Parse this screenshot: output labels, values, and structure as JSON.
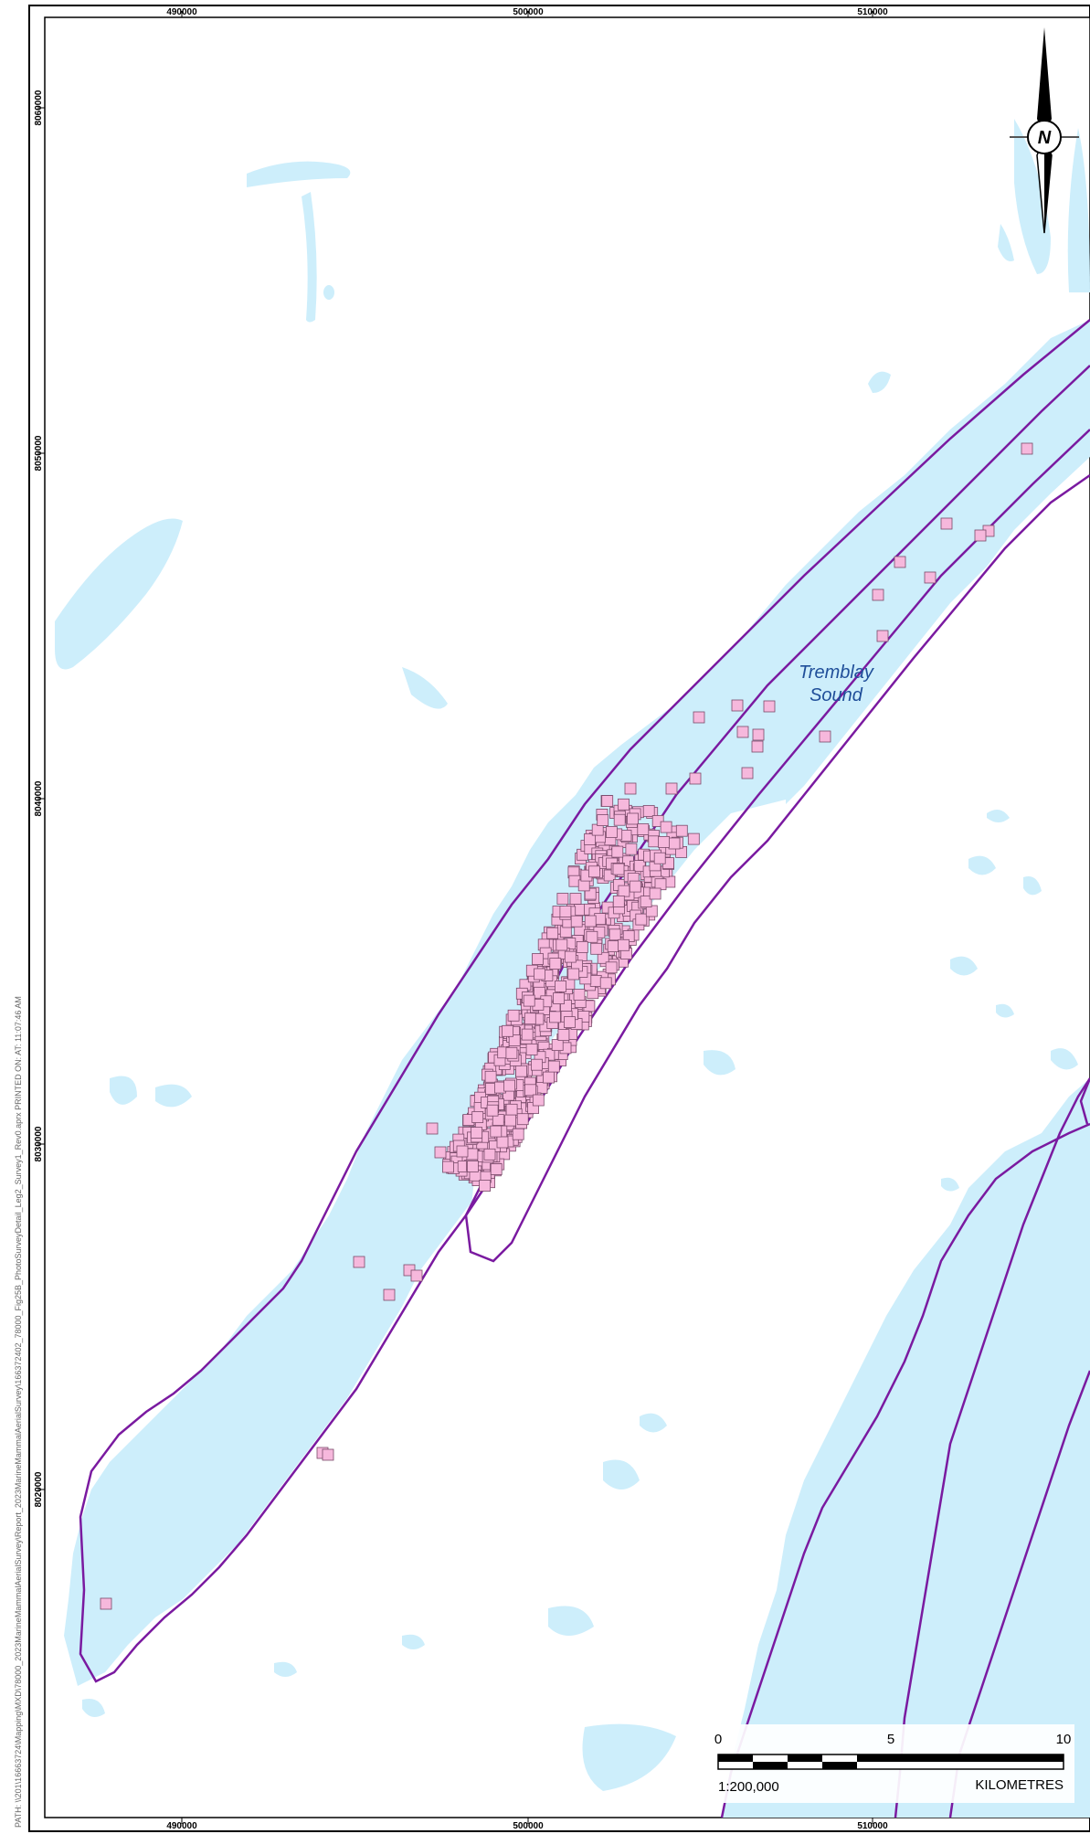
{
  "map": {
    "grid_x_labels": [
      "490000",
      "500000",
      "510000"
    ],
    "grid_y_labels": [
      "8060000",
      "8050000",
      "8040000",
      "8030000",
      "8020000"
    ],
    "place_name": [
      "Tremblay",
      "Sound"
    ],
    "north_arrow_letter": "N",
    "scale_bar": {
      "labels": [
        "0",
        "5",
        "10"
      ],
      "ratio": "1:200,000",
      "units": "KILOMETRES"
    },
    "path_note": "PATH: \\\\201\\16663724\\Mapping\\MXD\\78000_2023MarineMammalAerialSurvey\\Report_2023MarineMammalAerialSurvey\\166372402_78000_Fig25B_PhotoSurveyDetail_Leg2_Survey1_Rev0.aprx PRINTED ON: AT: 11:07:46 AM",
    "colors": {
      "water": "#cdeefb",
      "flight_line": "#7a1aa0",
      "sighting_fill": "#f6b8dc",
      "sighting_stroke": "#7a4a6a",
      "frame": "#000000"
    },
    "sightings_cluster_count": 700
  }
}
